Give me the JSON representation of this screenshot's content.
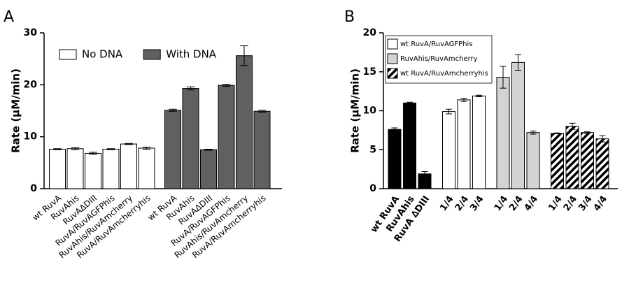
{
  "chart_data": [
    {
      "type": "bar",
      "panel_label": "A",
      "ylabel": "Rate (μM/min)",
      "categories": [
        "wt RuvA",
        "RuvAhis",
        "RuvA∆DIII",
        "RuvA/RuvAGFPhis",
        "RuvAhis/RuvAmcherry",
        "RuvA/RuvAmcherryhis",
        "wt RuvA",
        "RuvAhis",
        "RuvA∆DIII",
        "RuvA/RuvAGFPhis",
        "RuvAhis/RuvAmcherry",
        "RuvA/RuvAmcherryhis"
      ],
      "series": [
        {
          "name": "No DNA",
          "color": "#ffffff",
          "values": [
            7.6,
            7.7,
            6.8,
            7.6,
            8.6,
            7.8,
            null,
            null,
            null,
            null,
            null,
            null
          ],
          "errors": [
            0.1,
            0.2,
            0.2,
            0.1,
            0.1,
            0.2,
            null,
            null,
            null,
            null,
            null,
            null
          ]
        },
        {
          "name": "With DNA",
          "color": "#606060",
          "values": [
            null,
            null,
            null,
            null,
            null,
            null,
            15.1,
            19.3,
            7.5,
            19.9,
            25.6,
            14.9
          ],
          "errors": [
            null,
            null,
            null,
            null,
            null,
            null,
            0.2,
            0.3,
            0.1,
            0.2,
            1.9,
            0.2
          ]
        }
      ],
      "ylim": [
        0,
        30
      ],
      "yticks": [
        0,
        10,
        20,
        30
      ],
      "legend": "top"
    },
    {
      "type": "bar",
      "panel_label": "B",
      "ylabel": "Rate (μM/min)",
      "categories": [
        "wt RuvA",
        "RuvAhis",
        "RuvA ∆DIII",
        "1/4",
        "2/4",
        "3/4",
        "1/4",
        "2/4",
        "4/4",
        "1/4",
        "2/4",
        "3/4",
        "4/4"
      ],
      "series": [
        {
          "color": "#000000",
          "values": [
            7.6,
            11.0,
            1.9,
            null,
            null,
            null,
            null,
            null,
            null,
            null,
            null,
            null,
            null
          ],
          "errors": [
            0.2,
            0.1,
            0.3,
            null,
            null,
            null,
            null,
            null,
            null,
            null,
            null,
            null,
            null
          ]
        },
        {
          "name": "wt RuvA/RuvAGFPhis",
          "color": "#ffffff",
          "values": [
            null,
            null,
            null,
            9.9,
            11.4,
            11.9,
            null,
            null,
            null,
            null,
            null,
            null,
            null
          ],
          "errors": [
            null,
            null,
            null,
            0.3,
            0.2,
            0.1,
            null,
            null,
            null,
            null,
            null,
            null,
            null
          ]
        },
        {
          "name": "RuvAhis/RuvAmcherry",
          "color": "#d3d3d3",
          "values": [
            null,
            null,
            null,
            null,
            null,
            null,
            14.3,
            16.2,
            7.2,
            null,
            null,
            null,
            null
          ],
          "errors": [
            null,
            null,
            null,
            null,
            null,
            null,
            1.4,
            1.0,
            0.2,
            null,
            null,
            null,
            null
          ]
        },
        {
          "name": "wt RuvA/RuvAmcherryhis",
          "color": "#000000",
          "pattern": "hatch",
          "values": [
            null,
            null,
            null,
            null,
            null,
            null,
            null,
            null,
            null,
            7.1,
            8.0,
            7.2,
            6.4
          ],
          "errors": [
            null,
            null,
            null,
            null,
            null,
            null,
            null,
            null,
            null,
            0.05,
            0.4,
            0.1,
            0.4
          ]
        }
      ],
      "ylim": [
        0,
        20
      ],
      "yticks": [
        0,
        5,
        10,
        15,
        20
      ],
      "legend": "top-left"
    }
  ]
}
